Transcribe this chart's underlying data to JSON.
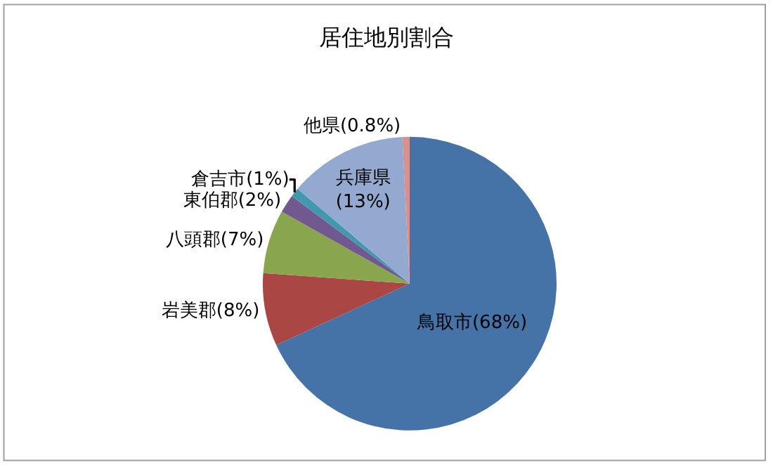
{
  "chart_data": {
    "type": "pie",
    "title": "居住地別割合",
    "categories": [
      "鳥取市",
      "岩美郡",
      "八頭郡",
      "東伯郡",
      "倉吉市",
      "兵庫県",
      "他県"
    ],
    "values": [
      68,
      8,
      7,
      2,
      1,
      13,
      0.8
    ],
    "value_labels": [
      "(68%)",
      "(8%)",
      "(7%)",
      "(2%)",
      "(1%)",
      "\n(13%)",
      "(0.8%)"
    ],
    "colors": [
      "#4572a7",
      "#aa4643",
      "#89a54e",
      "#71588f",
      "#4198af",
      "#93a9cf",
      "#db8f8c"
    ]
  }
}
